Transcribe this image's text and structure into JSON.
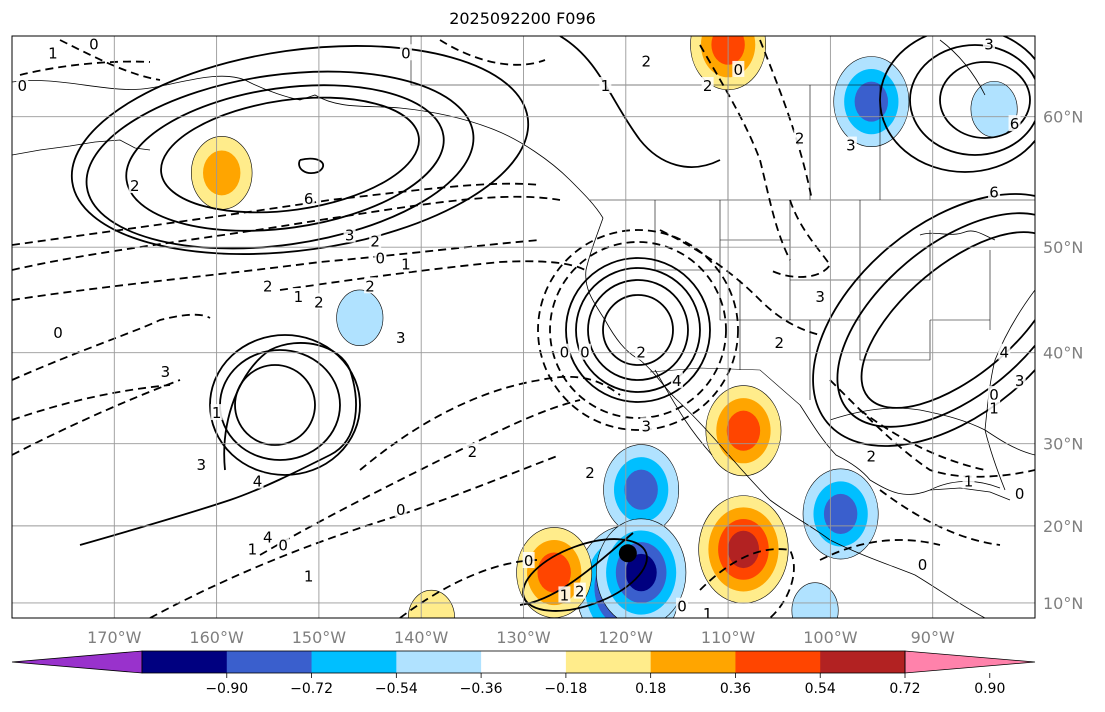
{
  "title": "2025092200 F096",
  "chart_data": {
    "type": "contour map",
    "title": "2025092200 F096",
    "projection": "mercator",
    "extent_lon": [
      -180,
      -80
    ],
    "extent_lat": [
      8,
      65
    ],
    "lon_ticks": [
      "170°W",
      "160°W",
      "150°W",
      "140°W",
      "130°W",
      "120°W",
      "110°W",
      "100°W",
      "90°W"
    ],
    "lat_ticks": [
      "10°N",
      "20°N",
      "30°N",
      "40°N",
      "50°N",
      "60°N"
    ],
    "grid": true,
    "marker": {
      "lon": -119.8,
      "lat": 16.5,
      "color": "#000000"
    },
    "colorbar": {
      "orientation": "horizontal",
      "extend": "both",
      "levels": [
        -0.9,
        -0.72,
        -0.54,
        -0.36,
        -0.18,
        0.18,
        0.36,
        0.54,
        0.72,
        0.9
      ],
      "tick_labels": [
        "−0.90",
        "−0.72",
        "−0.54",
        "−0.36",
        "−0.18",
        "0.18",
        "0.36",
        "0.54",
        "0.72",
        "0.90"
      ],
      "colors": [
        "#9932CC",
        "#000080",
        "#3A5FCD",
        "#00BFFF",
        "#B0E2FF",
        "#FFFFFF",
        "#FFEC8B",
        "#FFA500",
        "#FF4500",
        "#B22222",
        "#FF82AB"
      ]
    },
    "filled_anomalies": [
      {
        "lon": -159.5,
        "lat": 56.0,
        "value": 0.36
      },
      {
        "lon": -146.0,
        "lat": 43.5,
        "value": -0.18
      },
      {
        "lon": -110.0,
        "lat": 64.5,
        "value": 0.54
      },
      {
        "lon": -96.0,
        "lat": 61.0,
        "value": -0.54
      },
      {
        "lon": -84.0,
        "lat": 60.5,
        "value": -0.18
      },
      {
        "lon": -108.5,
        "lat": 31.5,
        "value": 0.54
      },
      {
        "lon": -118.5,
        "lat": 24.5,
        "value": -0.54
      },
      {
        "lon": -119.8,
        "lat": 12.0,
        "value": -0.9
      },
      {
        "lon": -118.5,
        "lat": 14.0,
        "value": -0.72
      },
      {
        "lon": -127.0,
        "lat": 14.0,
        "value": 0.54
      },
      {
        "lon": -108.5,
        "lat": 17.0,
        "value": 0.72
      },
      {
        "lon": -99.0,
        "lat": 21.5,
        "value": -0.54
      },
      {
        "lon": -101.5,
        "lat": 9.0,
        "value": -0.18
      },
      {
        "lon": -139.0,
        "lat": 8.0,
        "value": 0.18
      }
    ],
    "contour_labels": [
      {
        "lon": -179.0,
        "lat": 62.0,
        "text": "0"
      },
      {
        "lon": -176.0,
        "lat": 64.0,
        "text": "1"
      },
      {
        "lon": -172.0,
        "lat": 64.5,
        "text": "0"
      },
      {
        "lon": -168.0,
        "lat": 55.0,
        "text": "2"
      },
      {
        "lon": -151.0,
        "lat": 54.0,
        "text": "6"
      },
      {
        "lon": -147.0,
        "lat": 51.0,
        "text": "3"
      },
      {
        "lon": -144.0,
        "lat": 49.0,
        "text": "0"
      },
      {
        "lon": -144.5,
        "lat": 50.5,
        "text": "2"
      },
      {
        "lon": -141.5,
        "lat": 48.5,
        "text": "1"
      },
      {
        "lon": -155.0,
        "lat": 46.5,
        "text": "2"
      },
      {
        "lon": -152.0,
        "lat": 45.5,
        "text": "1"
      },
      {
        "lon": -150.0,
        "lat": 45.0,
        "text": "2"
      },
      {
        "lon": -145.0,
        "lat": 46.5,
        "text": "2"
      },
      {
        "lon": -175.5,
        "lat": 42.0,
        "text": "0"
      },
      {
        "lon": -142.0,
        "lat": 41.5,
        "text": "3"
      },
      {
        "lon": -165.0,
        "lat": 38.0,
        "text": "3"
      },
      {
        "lon": -160.0,
        "lat": 33.5,
        "text": "1"
      },
      {
        "lon": -161.5,
        "lat": 27.5,
        "text": "3"
      },
      {
        "lon": -156.0,
        "lat": 25.5,
        "text": "4"
      },
      {
        "lon": -156.5,
        "lat": 17.0,
        "text": "1"
      },
      {
        "lon": -155.0,
        "lat": 18.5,
        "text": "4"
      },
      {
        "lon": -153.5,
        "lat": 17.5,
        "text": "0"
      },
      {
        "lon": -142.0,
        "lat": 22.0,
        "text": "0"
      },
      {
        "lon": -151.0,
        "lat": 13.5,
        "text": "1"
      },
      {
        "lon": -135.0,
        "lat": 29.0,
        "text": "2"
      },
      {
        "lon": -126.0,
        "lat": 40.0,
        "text": "0"
      },
      {
        "lon": -124.0,
        "lat": 40.0,
        "text": "0"
      },
      {
        "lon": -118.5,
        "lat": 40.0,
        "text": "2"
      },
      {
        "lon": -115.0,
        "lat": 37.0,
        "text": "4"
      },
      {
        "lon": -118.0,
        "lat": 32.0,
        "text": "3"
      },
      {
        "lon": -123.5,
        "lat": 26.5,
        "text": "2"
      },
      {
        "lon": -129.5,
        "lat": 15.5,
        "text": "0"
      },
      {
        "lon": -126.0,
        "lat": 11.0,
        "text": "1"
      },
      {
        "lon": -124.5,
        "lat": 11.5,
        "text": "2"
      },
      {
        "lon": -114.5,
        "lat": 9.5,
        "text": "0"
      },
      {
        "lon": -112.0,
        "lat": 8.5,
        "text": "1"
      },
      {
        "lon": -118.0,
        "lat": 63.5,
        "text": "2"
      },
      {
        "lon": -122.0,
        "lat": 62.0,
        "text": "1"
      },
      {
        "lon": -141.5,
        "lat": 64.0,
        "text": "0"
      },
      {
        "lon": -112.0,
        "lat": 62.0,
        "text": "2"
      },
      {
        "lon": -109.0,
        "lat": 63.0,
        "text": "0"
      },
      {
        "lon": -103.0,
        "lat": 58.5,
        "text": "2"
      },
      {
        "lon": -98.0,
        "lat": 58.0,
        "text": "3"
      },
      {
        "lon": -84.5,
        "lat": 64.5,
        "text": "3"
      },
      {
        "lon": -82.0,
        "lat": 59.5,
        "text": "6"
      },
      {
        "lon": -84.0,
        "lat": 54.5,
        "text": "6"
      },
      {
        "lon": -101.0,
        "lat": 45.5,
        "text": "3"
      },
      {
        "lon": -105.0,
        "lat": 41.0,
        "text": "2"
      },
      {
        "lon": -83.0,
        "lat": 40.0,
        "text": "4"
      },
      {
        "lon": -81.5,
        "lat": 37.0,
        "text": "3"
      },
      {
        "lon": -84.0,
        "lat": 35.5,
        "text": "0"
      },
      {
        "lon": -84.0,
        "lat": 34.0,
        "text": "1"
      },
      {
        "lon": -96.0,
        "lat": 28.5,
        "text": "2"
      },
      {
        "lon": -86.5,
        "lat": 25.5,
        "text": "1"
      },
      {
        "lon": -81.5,
        "lat": 24.0,
        "text": "0"
      },
      {
        "lon": -91.0,
        "lat": 15.0,
        "text": "0"
      }
    ]
  }
}
